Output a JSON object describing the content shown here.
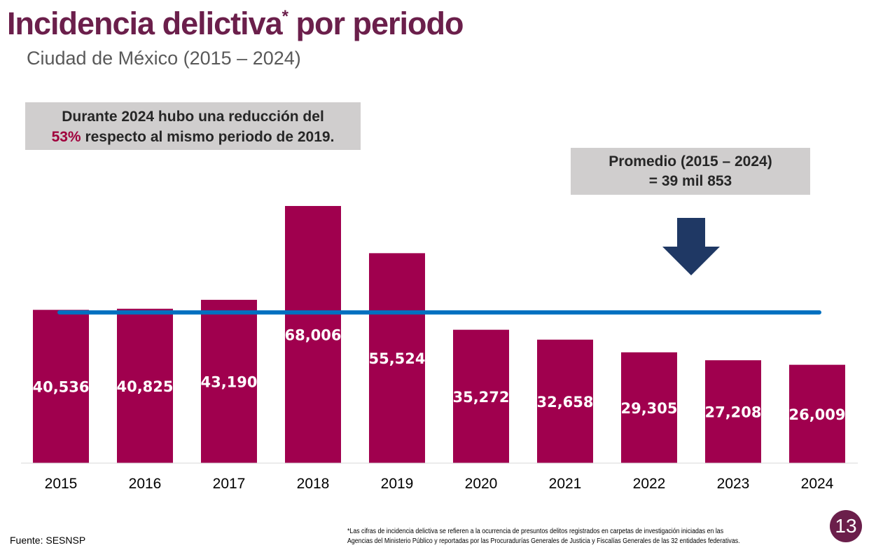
{
  "header": {
    "title": "Incidencia delictiva",
    "title_mark": "*",
    "title_rest": " por periodo",
    "subtitle": "Ciudad de México (2015 – 2024)"
  },
  "callout": {
    "line1": "Durante 2024 hubo una reducción del",
    "pct": "53%",
    "line2": " respecto al mismo periodo de 2019."
  },
  "average_box": {
    "line1": "Promedio (2015 – 2024)",
    "line2": "= 39 mil 853"
  },
  "chart_data": {
    "type": "bar",
    "categories": [
      "2015",
      "2016",
      "2017",
      "2018",
      "2019",
      "2020",
      "2021",
      "2022",
      "2023",
      "2024"
    ],
    "values": [
      40536,
      40825,
      43190,
      68006,
      55524,
      35272,
      32658,
      29305,
      27208,
      26009
    ],
    "data_labels": [
      "40,536",
      "40,825",
      "43,190",
      "68,006",
      "55,524",
      "35,272",
      "32,658",
      "29,305",
      "27,208",
      "26,009"
    ],
    "average_line": 39853,
    "ylim": [
      0,
      75000
    ],
    "grid": false,
    "colors": {
      "bar": "#A0004E",
      "average_line": "#0070C0",
      "arrow": "#1F3864"
    }
  },
  "footer": {
    "source": "Fuente: SESNSP",
    "footnote_line1": "*Las cifras de incidencia delictiva se refieren a la ocurrencia de presuntos delitos registrados en carpetas de investigación iniciadas en las",
    "footnote_line2": "Agencias del Ministerio Público y reportadas por las Procuradurías Generales de Justicia y Fiscalías Generales de las 32 entidades federativas.",
    "page_number": "13"
  }
}
